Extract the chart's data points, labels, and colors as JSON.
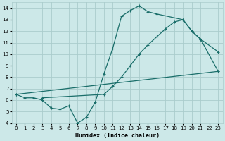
{
  "xlabel": "Humidex (Indice chaleur)",
  "bg_color": "#cce8e8",
  "grid_color": "#aacccc",
  "line_color": "#1a6e6a",
  "xlim": [
    -0.5,
    23.5
  ],
  "ylim": [
    4,
    14.5
  ],
  "xticks": [
    0,
    1,
    2,
    3,
    4,
    5,
    6,
    7,
    8,
    9,
    10,
    11,
    12,
    13,
    14,
    15,
    16,
    17,
    18,
    19,
    20,
    21,
    22,
    23
  ],
  "yticks": [
    4,
    5,
    6,
    7,
    8,
    9,
    10,
    11,
    12,
    13,
    14
  ],
  "series1_x": [
    0,
    1,
    2,
    3,
    4,
    5,
    6,
    7,
    8,
    9,
    10,
    11,
    12,
    13,
    14,
    15,
    16,
    19,
    20,
    21,
    23
  ],
  "series1_y": [
    6.5,
    6.2,
    6.2,
    6.0,
    5.3,
    5.2,
    5.5,
    4.0,
    4.5,
    5.8,
    8.3,
    10.5,
    13.3,
    13.8,
    14.2,
    13.7,
    13.5,
    13.0,
    12.0,
    11.3,
    10.2
  ],
  "series2_x": [
    0,
    23
  ],
  "series2_y": [
    6.5,
    8.5
  ],
  "series3_x": [
    3,
    10,
    11,
    12,
    13,
    14,
    15,
    16,
    17,
    18,
    19,
    20,
    21,
    23
  ],
  "series3_y": [
    6.2,
    6.5,
    7.2,
    8.0,
    9.0,
    10.0,
    10.8,
    11.5,
    12.2,
    12.8,
    13.0,
    12.0,
    11.3,
    8.5
  ]
}
